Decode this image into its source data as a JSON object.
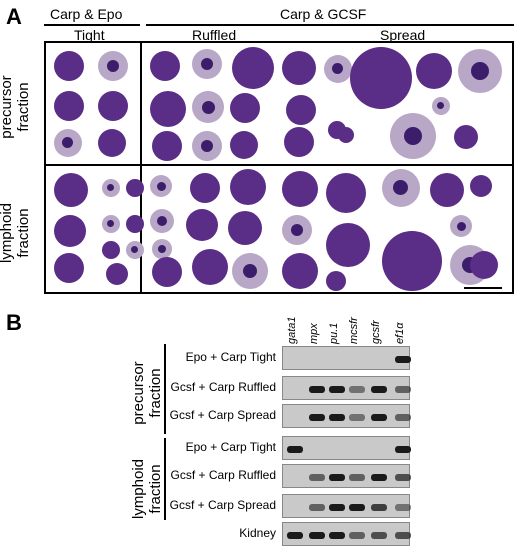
{
  "panelA": {
    "letter": "A",
    "header_epo": "Carp & Epo",
    "header_gcsf": "Carp & GCSF",
    "sub_tight": "Tight",
    "sub_ruffled": "Ruffled",
    "sub_spread": "Spread",
    "row_precursor": "precursor\nfraction",
    "row_lymphoid": "lymphoid\nfraction"
  },
  "panelB": {
    "letter": "B",
    "genes": [
      "gata1",
      "mpx",
      "pu.1",
      "mcsfr",
      "gcsfr",
      "ef1α"
    ],
    "group_precursor": "precursor\nfraction",
    "group_lymphoid": "lymphoid\nfraction",
    "rows": [
      {
        "label": "Epo + Carp Tight",
        "bands": [
          0,
          0,
          0,
          0,
          0,
          1
        ]
      },
      {
        "label": "Gcsf + Carp Ruffled",
        "bands": [
          0,
          1,
          1,
          0.5,
          1,
          0.6
        ]
      },
      {
        "label": "Gcsf + Carp Spread",
        "bands": [
          0,
          1,
          1,
          0.5,
          1,
          0.6
        ]
      },
      {
        "label": "Epo + Carp Tight",
        "bands": [
          1,
          0,
          0,
          0,
          0,
          1
        ]
      },
      {
        "label": "Gcsf + Carp Ruffled",
        "bands": [
          0,
          0.6,
          1,
          0.6,
          1,
          0.7
        ]
      },
      {
        "label": "Gcsf + Carp Spread",
        "bands": [
          0,
          0.6,
          1,
          1,
          0.8,
          0.5
        ]
      },
      {
        "label": "Kidney",
        "bands": [
          1,
          1,
          1,
          0.6,
          0.7,
          0.7
        ]
      }
    ]
  },
  "colors": {
    "stain_dark": "#5a2d86",
    "stain_light": "#b8a7c6",
    "nucleus": "#3c1d6b",
    "gel_bg": "#c9c9c9",
    "band": "#1a1a1a"
  }
}
